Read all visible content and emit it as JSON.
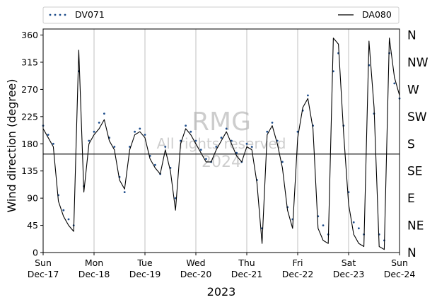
{
  "chart_data": {
    "type": "line",
    "title": "",
    "xlabel": "2023",
    "ylabel": "Wind direction (degree)",
    "ylim": [
      0,
      370
    ],
    "yticks": [
      0,
      45,
      90,
      135,
      180,
      225,
      270,
      315,
      360
    ],
    "compass_labels": [
      "N",
      "NE",
      "E",
      "SE",
      "S",
      "SW",
      "W",
      "NW",
      "N"
    ],
    "x_ticks": [
      {
        "day": "Sun",
        "date": "Dec-17"
      },
      {
        "day": "Mon",
        "date": "Dec-18"
      },
      {
        "day": "Tue",
        "date": "Dec-19"
      },
      {
        "day": "Wed",
        "date": "Dec-20"
      },
      {
        "day": "Thu",
        "date": "Dec-21"
      },
      {
        "day": "Fri",
        "date": "Dec-22"
      },
      {
        "day": "Sat",
        "date": "Dec-23"
      },
      {
        "day": "Sun",
        "date": "Dec-24"
      }
    ],
    "xlim_days": [
      0,
      7
    ],
    "grid": "vertical at each day",
    "reference_line": 163,
    "legend": {
      "placement": "top, above plot",
      "entries": [
        "DV071",
        "DA080"
      ]
    },
    "watermark": [
      "RMG",
      "All rights reserved",
      "2024"
    ],
    "series": [
      {
        "name": "DV071",
        "style": "dotted markers",
        "color": "#1f4e8c",
        "x": [
          0,
          0.1,
          0.2,
          0.3,
          0.4,
          0.5,
          0.6,
          0.7,
          0.8,
          0.9,
          1.0,
          1.1,
          1.2,
          1.3,
          1.4,
          1.5,
          1.6,
          1.7,
          1.8,
          1.9,
          2.0,
          2.1,
          2.2,
          2.3,
          2.4,
          2.5,
          2.6,
          2.7,
          2.8,
          2.9,
          3.0,
          3.1,
          3.2,
          3.3,
          3.4,
          3.5,
          3.6,
          3.7,
          3.8,
          3.9,
          4.0,
          4.1,
          4.2,
          4.3,
          4.4,
          4.5,
          4.6,
          4.7,
          4.8,
          4.9,
          5.0,
          5.1,
          5.2,
          5.3,
          5.4,
          5.5,
          5.6,
          5.7,
          5.8,
          5.9,
          6.0,
          6.1,
          6.2,
          6.3,
          6.4,
          6.5,
          6.6,
          6.7,
          6.8,
          6.9,
          7.0
        ],
        "values": [
          210,
          195,
          180,
          95,
          70,
          55,
          45,
          300,
          110,
          185,
          200,
          215,
          230,
          190,
          175,
          125,
          100,
          175,
          200,
          205,
          195,
          160,
          145,
          130,
          175,
          140,
          90,
          185,
          210,
          200,
          185,
          170,
          155,
          150,
          175,
          190,
          205,
          185,
          165,
          150,
          180,
          175,
          120,
          40,
          200,
          215,
          185,
          150,
          75,
          55,
          200,
          235,
          260,
          210,
          60,
          45,
          30,
          300,
          330,
          210,
          100,
          50,
          40,
          30,
          310,
          230,
          30,
          20,
          330,
          280,
          255
        ]
      },
      {
        "name": "DA080",
        "style": "solid line",
        "color": "#000000",
        "x": [
          0,
          0.1,
          0.2,
          0.3,
          0.4,
          0.5,
          0.6,
          0.7,
          0.8,
          0.9,
          1.0,
          1.1,
          1.2,
          1.3,
          1.4,
          1.5,
          1.6,
          1.7,
          1.8,
          1.9,
          2.0,
          2.1,
          2.2,
          2.3,
          2.4,
          2.5,
          2.6,
          2.7,
          2.8,
          2.9,
          3.0,
          3.1,
          3.2,
          3.3,
          3.4,
          3.5,
          3.6,
          3.7,
          3.8,
          3.9,
          4.0,
          4.1,
          4.2,
          4.3,
          4.4,
          4.5,
          4.6,
          4.7,
          4.8,
          4.9,
          5.0,
          5.1,
          5.2,
          5.3,
          5.4,
          5.5,
          5.6,
          5.7,
          5.8,
          5.9,
          6.0,
          6.1,
          6.2,
          6.3,
          6.4,
          6.5,
          6.6,
          6.7,
          6.8,
          6.9,
          7.0
        ],
        "values": [
          205,
          190,
          175,
          85,
          60,
          45,
          35,
          335,
          100,
          180,
          195,
          205,
          220,
          185,
          170,
          120,
          105,
          170,
          195,
          200,
          190,
          155,
          140,
          130,
          170,
          135,
          70,
          180,
          205,
          195,
          180,
          165,
          150,
          150,
          170,
          185,
          200,
          180,
          160,
          150,
          175,
          170,
          115,
          15,
          195,
          210,
          180,
          140,
          70,
          40,
          190,
          240,
          255,
          205,
          40,
          20,
          15,
          355,
          345,
          200,
          80,
          30,
          15,
          10,
          350,
          240,
          10,
          5,
          355,
          290,
          260
        ]
      }
    ]
  }
}
